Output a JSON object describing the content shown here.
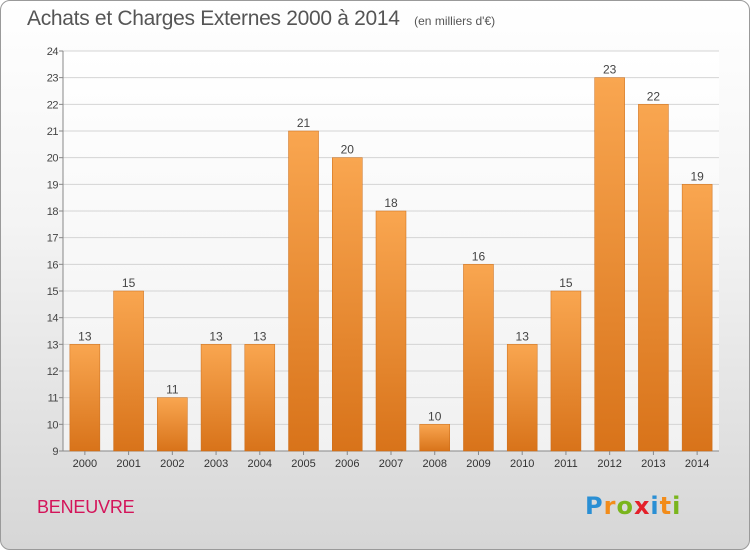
{
  "header": {
    "title": "Achats et Charges Externes 2000 à 2014",
    "subtitle": "(en milliers d'€)"
  },
  "footer": {
    "commune": "BENEUVRE",
    "logo_text": "Proxiti",
    "logo_colors": [
      "#2a8fd4",
      "#f28c1a",
      "#7ab51d",
      "#e4202a",
      "#2a8fd4",
      "#f28c1a",
      "#7ab51d"
    ]
  },
  "chart_data": {
    "type": "bar",
    "categories": [
      "2000",
      "2001",
      "2002",
      "2003",
      "2004",
      "2005",
      "2006",
      "2007",
      "2008",
      "2009",
      "2010",
      "2011",
      "2012",
      "2013",
      "2014"
    ],
    "values": [
      13,
      15,
      11,
      13,
      13,
      21,
      20,
      18,
      10,
      16,
      13,
      15,
      23,
      22,
      19
    ],
    "title": "Achats et Charges Externes 2000 à 2014",
    "subtitle": "(en milliers d'€)",
    "xlabel": "",
    "ylabel": "",
    "ylim": [
      9,
      24
    ],
    "yticks": [
      9,
      10,
      11,
      12,
      13,
      14,
      15,
      16,
      17,
      18,
      19,
      20,
      21,
      22,
      23,
      24
    ],
    "grid": true,
    "bar_color_top": "#f9a650",
    "bar_color_bottom": "#d8731a"
  }
}
